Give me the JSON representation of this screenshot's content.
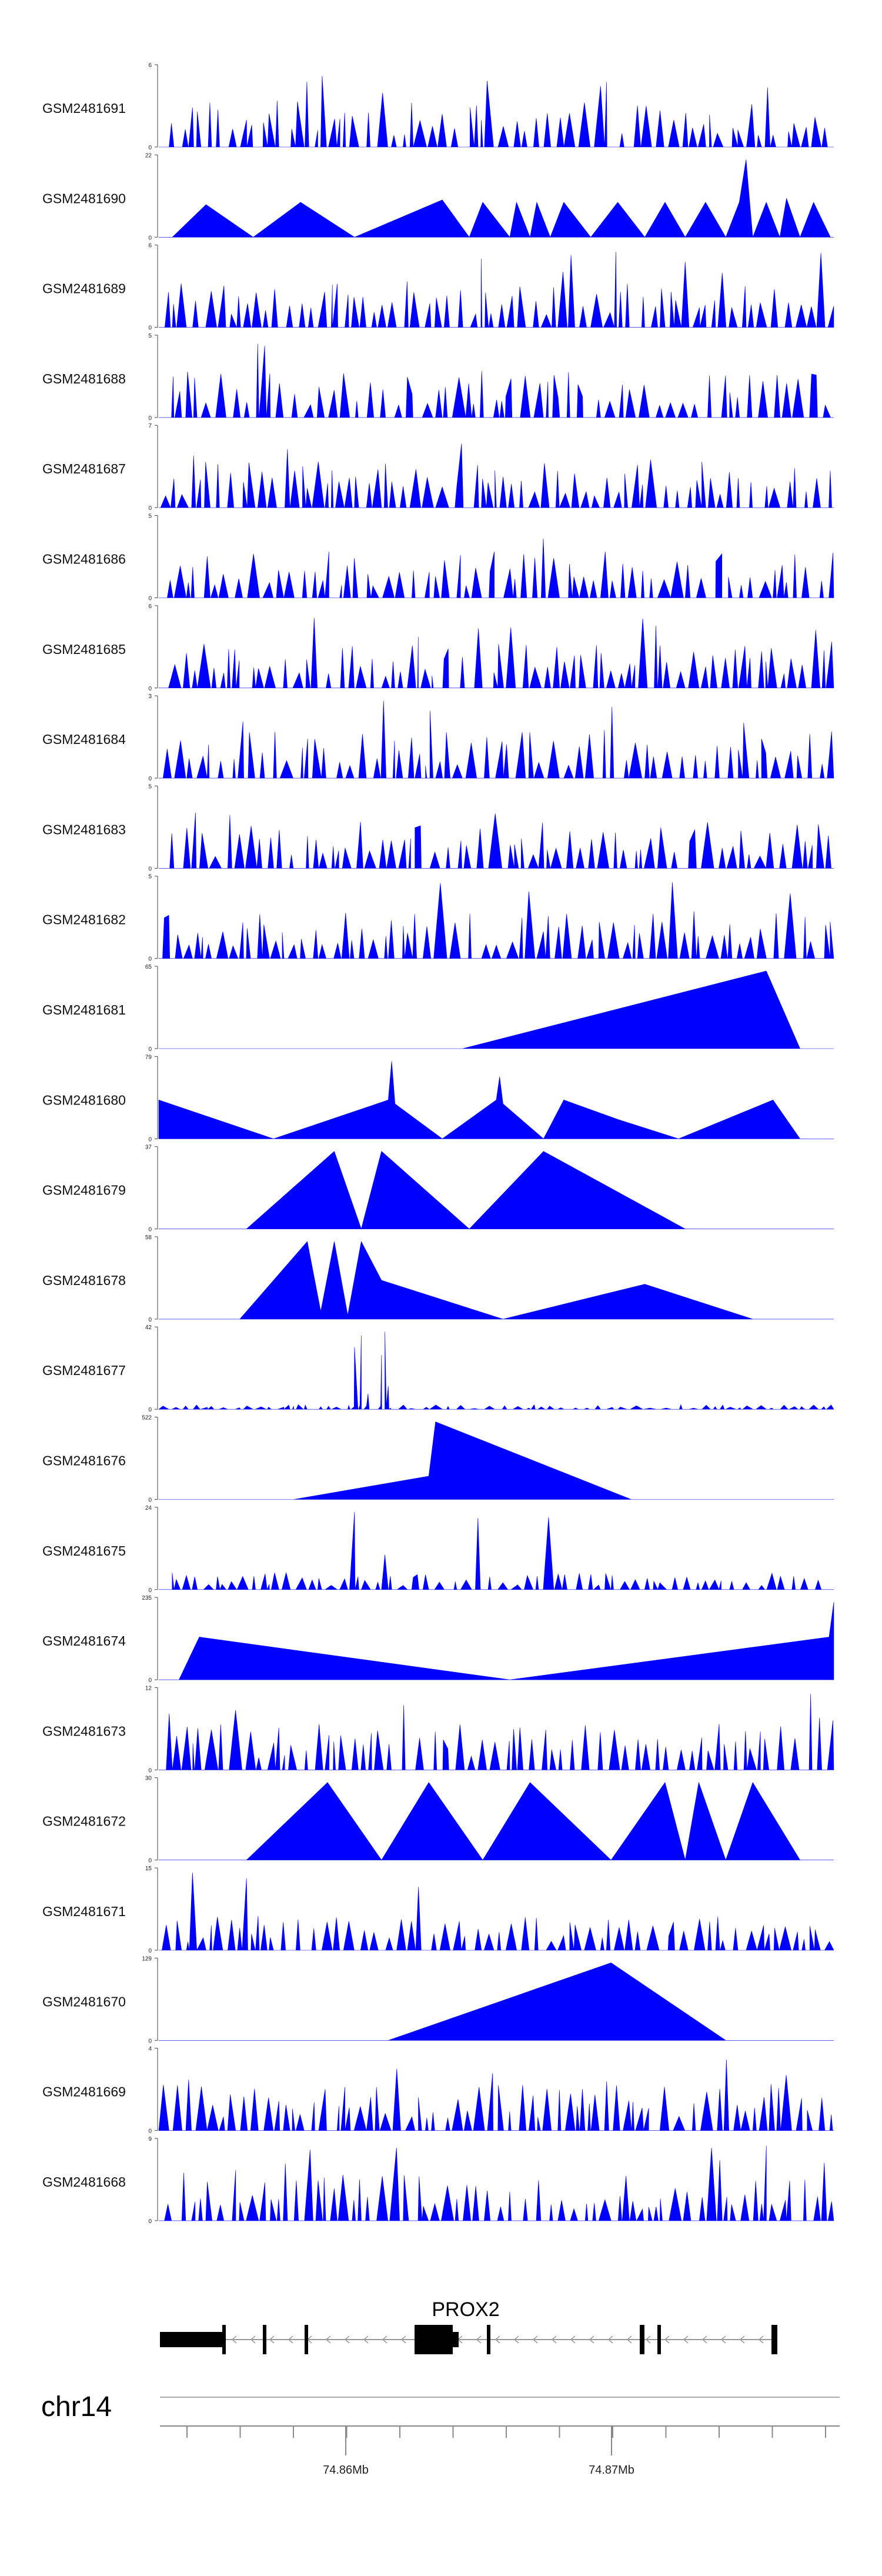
{
  "chart_data": {
    "type": "area",
    "title": "",
    "chromosome": "chr14",
    "gene": "PROX2",
    "axis_ticks": [
      "74.86Mb",
      "74.87Mb"
    ],
    "color": "#0000ff",
    "tracks": [
      {
        "name": "GSM2481691",
        "ymax": "6",
        "ymin": "0"
      },
      {
        "name": "GSM2481690",
        "ymax": "22",
        "ymin": "0"
      },
      {
        "name": "GSM2481689",
        "ymax": "6",
        "ymin": "0"
      },
      {
        "name": "GSM2481688",
        "ymax": "5",
        "ymin": "0"
      },
      {
        "name": "GSM2481687",
        "ymax": "7",
        "ymin": "0"
      },
      {
        "name": "GSM2481686",
        "ymax": "5",
        "ymin": "0"
      },
      {
        "name": "GSM2481685",
        "ymax": "6",
        "ymin": "0"
      },
      {
        "name": "GSM2481684",
        "ymax": "3",
        "ymin": "0"
      },
      {
        "name": "GSM2481683",
        "ymax": "5",
        "ymin": "0"
      },
      {
        "name": "GSM2481682",
        "ymax": "5",
        "ymin": "0"
      },
      {
        "name": "GSM2481681",
        "ymax": "65",
        "ymin": "0"
      },
      {
        "name": "GSM2481680",
        "ymax": "79",
        "ymin": "0"
      },
      {
        "name": "GSM2481679",
        "ymax": "37",
        "ymin": "0"
      },
      {
        "name": "GSM2481678",
        "ymax": "58",
        "ymin": "0"
      },
      {
        "name": "GSM2481677",
        "ymax": "42",
        "ymin": "0"
      },
      {
        "name": "GSM2481676",
        "ymax": "522",
        "ymin": "0"
      },
      {
        "name": "GSM2481675",
        "ymax": "24",
        "ymin": "0"
      },
      {
        "name": "GSM2481674",
        "ymax": "235",
        "ymin": "0"
      },
      {
        "name": "GSM2481673",
        "ymax": "12",
        "ymin": "0"
      },
      {
        "name": "GSM2481672",
        "ymax": "30",
        "ymin": "0"
      },
      {
        "name": "GSM2481671",
        "ymax": "15",
        "ymin": "0"
      },
      {
        "name": "GSM2481670",
        "ymax": "129",
        "ymin": "0"
      },
      {
        "name": "GSM2481669",
        "ymax": "4",
        "ymin": "0"
      },
      {
        "name": "GSM2481668",
        "ymax": "9",
        "ymin": "0"
      }
    ]
  }
}
